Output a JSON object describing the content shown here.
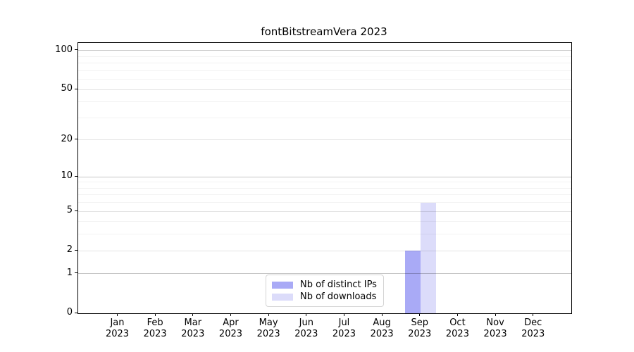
{
  "chart_data": {
    "type": "bar",
    "title": "fontBitstreamVera 2023",
    "x": {
      "months": [
        "Jan",
        "Feb",
        "Mar",
        "Apr",
        "May",
        "Jun",
        "Jul",
        "Aug",
        "Sep",
        "Oct",
        "Nov",
        "Dec"
      ],
      "year": "2023"
    },
    "categories": [
      "Jan 2023",
      "Feb 2023",
      "Mar 2023",
      "Apr 2023",
      "May 2023",
      "Jun 2023",
      "Jul 2023",
      "Aug 2023",
      "Sep 2023",
      "Oct 2023",
      "Nov 2023",
      "Dec 2023"
    ],
    "series": [
      {
        "name": "Nb of distinct IPs",
        "color": "#a9aaf6",
        "values": [
          0,
          0,
          0,
          0,
          0,
          0,
          0,
          0,
          2,
          0,
          0,
          0
        ]
      },
      {
        "name": "Nb of downloads",
        "color": "#dcdcfa",
        "values": [
          0,
          0,
          0,
          0,
          0,
          0,
          0,
          0,
          6,
          0,
          0,
          0
        ]
      }
    ],
    "yscale": "log10(value+1)",
    "ylim": [
      0,
      114
    ],
    "y_ticks_labeled": [
      0,
      1,
      2,
      5,
      10,
      20,
      50,
      100
    ],
    "y_gridlines_strong": [
      1,
      10,
      100
    ],
    "y_gridlines_medium": [
      2,
      5,
      20,
      50
    ],
    "y_gridlines_minor": [
      3,
      4,
      6,
      7,
      8,
      9,
      30,
      40,
      60,
      70,
      80,
      90
    ],
    "grid": true,
    "legend_position": "lower center"
  },
  "colors": {
    "axis": "#000000",
    "text": "#000000",
    "grid_strong": "rgba(0,0,0,0.22)",
    "grid_medium": "rgba(0,0,0,0.11)",
    "grid_minor": "rgba(0,0,0,0.05)",
    "legend_border": "#d4d4d4",
    "background": "#ffffff"
  }
}
